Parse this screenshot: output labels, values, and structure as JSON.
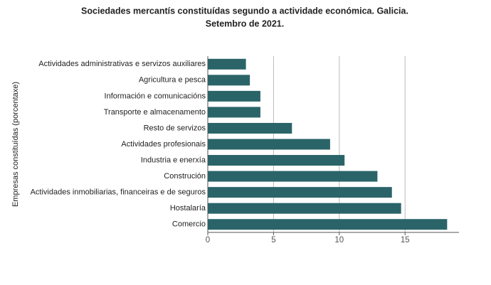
{
  "chart_data": {
    "type": "barh",
    "title": "Sociedades mercantís constituídas segundo a actividade económica. Galicia.",
    "subtitle": "Setembro de 2021.",
    "y_label": "Empresas constituídas (porcentaxe)",
    "categories": [
      "Actividades administrativas e servizos auxiliares",
      "Agricultura e pesca",
      "Información e comunicacións",
      "Transporte e almacenamento",
      "Resto de servizos",
      "Actividades profesionais",
      "Industria e enerxía",
      "Construción",
      "Actividades inmobiliarias, financeiras e de seguros",
      "Hostalaría",
      "Comercio"
    ],
    "values": [
      2.9,
      3.2,
      4.0,
      4.0,
      6.4,
      9.3,
      10.4,
      12.9,
      14.0,
      14.7,
      18.2
    ],
    "color": "#2a6468",
    "xlim": [
      0,
      19.1
    ],
    "xticks": [
      0,
      5,
      10,
      15
    ],
    "grid": true
  }
}
